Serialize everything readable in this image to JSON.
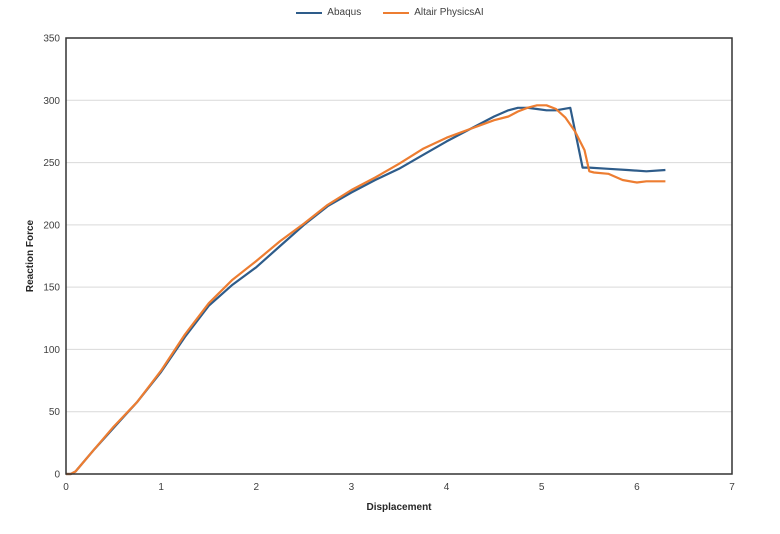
{
  "chart_data": {
    "type": "line",
    "xlabel": "Displacement",
    "ylabel": "Reaction Force",
    "xlim": [
      0,
      7
    ],
    "ylim": [
      0,
      350
    ],
    "xticks": [
      0,
      1,
      2,
      3,
      4,
      5,
      6,
      7
    ],
    "yticks": [
      0,
      50,
      100,
      150,
      200,
      250,
      300,
      350
    ],
    "grid": "horizontal",
    "legend_position": "top",
    "series": [
      {
        "name": "Abaqus",
        "color": "#2e5c8a",
        "x": [
          0.0,
          0.05,
          0.1,
          0.3,
          0.5,
          0.75,
          1.0,
          1.25,
          1.5,
          1.75,
          2.0,
          2.25,
          2.5,
          2.75,
          3.0,
          3.25,
          3.5,
          3.75,
          4.0,
          4.25,
          4.5,
          4.65,
          4.75,
          4.85,
          4.95,
          5.05,
          5.15,
          5.3,
          5.43,
          5.5,
          5.7,
          5.9,
          6.1,
          6.3
        ],
        "y": [
          0,
          0,
          2,
          20,
          37,
          58,
          82,
          110,
          135,
          152,
          166,
          183,
          200,
          215,
          226,
          236,
          245,
          256,
          267,
          277,
          287,
          292,
          294,
          294,
          293,
          292,
          292,
          294,
          246,
          246,
          245,
          244,
          243,
          244
        ]
      },
      {
        "name": "Altair PhysicsAI",
        "color": "#ed7d31",
        "x": [
          0.0,
          0.05,
          0.1,
          0.3,
          0.5,
          0.75,
          1.0,
          1.25,
          1.5,
          1.75,
          2.0,
          2.25,
          2.5,
          2.75,
          3.0,
          3.25,
          3.5,
          3.75,
          4.0,
          4.25,
          4.5,
          4.65,
          4.75,
          4.85,
          4.95,
          5.05,
          5.15,
          5.25,
          5.35,
          5.45,
          5.5,
          5.55,
          5.7,
          5.85,
          6.0,
          6.1,
          6.3
        ],
        "y": [
          0,
          0,
          2,
          20,
          38,
          58,
          83,
          112,
          137,
          156,
          171,
          187,
          201,
          216,
          228,
          238,
          249,
          261,
          270,
          277,
          284,
          287,
          291,
          294,
          296,
          296,
          293,
          286,
          275,
          260,
          243,
          242,
          241,
          236,
          234,
          235,
          235
        ]
      }
    ]
  }
}
